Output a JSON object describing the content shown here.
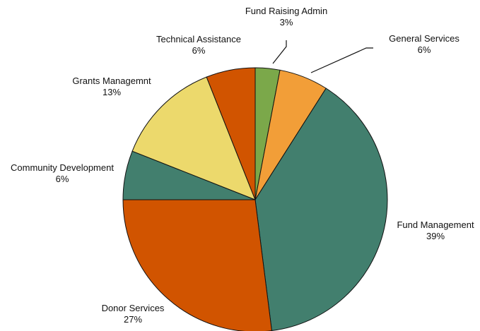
{
  "chart_data": {
    "type": "pie",
    "categories": [
      "Fund Raising Admin",
      "General Services",
      "Fund Management",
      "Donor Services",
      "Community Development",
      "Grants Managemnt",
      "Technical Assistance"
    ],
    "values": [
      3,
      6,
      39,
      27,
      6,
      13,
      6
    ],
    "value_labels": [
      "3%",
      "6%",
      "39%",
      "27%",
      "6%",
      "13%",
      "6%"
    ],
    "colors": [
      "#7ba84a",
      "#f29e38",
      "#427f6e",
      "#d15400",
      "#427f6e",
      "#ecd96c",
      "#d15400"
    ]
  }
}
